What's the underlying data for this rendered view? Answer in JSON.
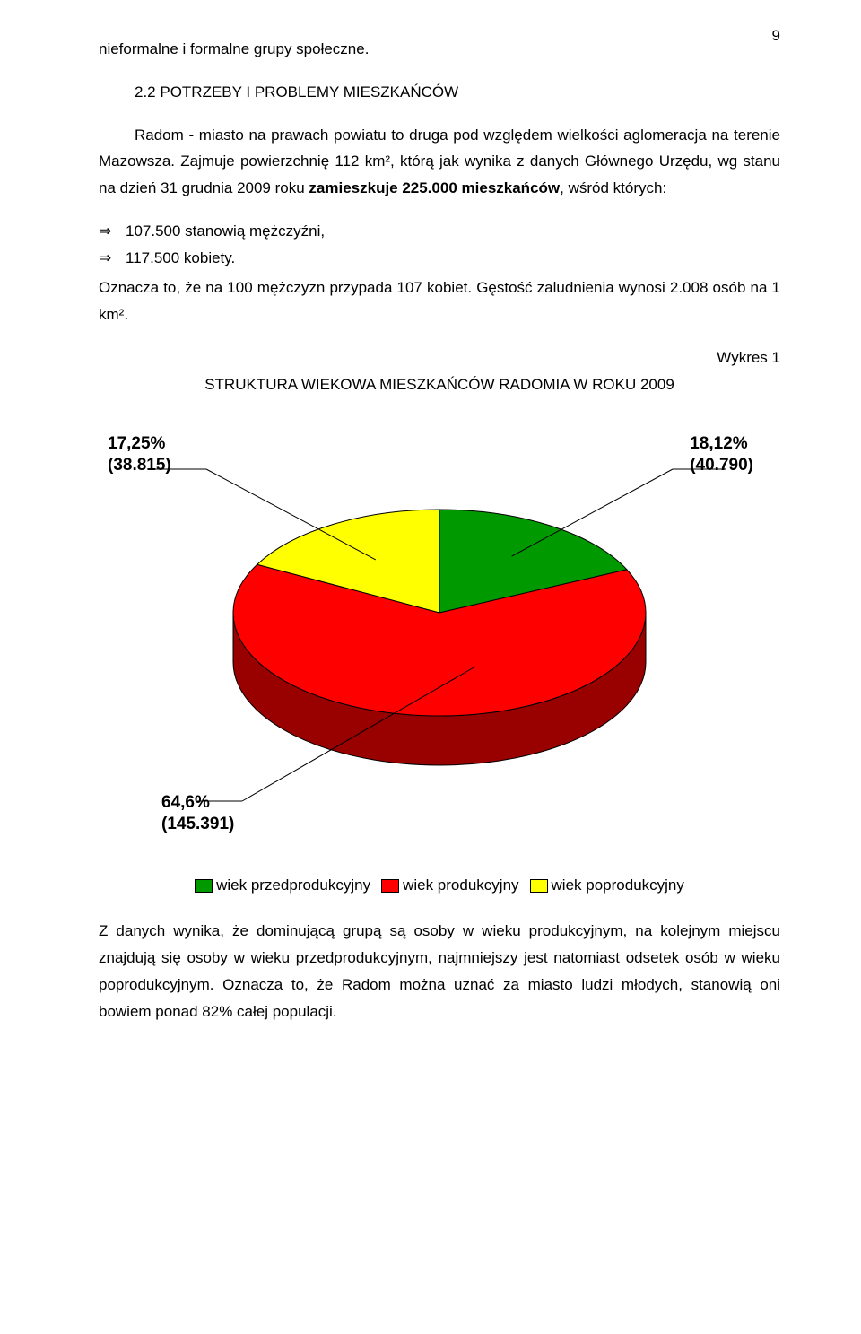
{
  "page_number": "9",
  "p1": "nieformalne i formalne grupy społeczne.",
  "heading": "2.2 POTRZEBY I PROBLEMY MIESZKAŃCÓW",
  "p2a": "Radom - miasto na prawach powiatu to druga pod względem wielkości aglomeracja na terenie Mazowsza. Zajmuje powierzchnię 112 km², którą jak wynika   z danych Głównego Urzędu, wg stanu na dzień 31 grudnia 2009 roku ",
  "p2b_bold": "zamieszkuje 225.000 mieszkańców",
  "p2c": ", wśród których:",
  "b1": "107.500 stanowią mężczyźni,",
  "b2": "117.500 kobiety.",
  "p3": "Oznacza to, że na 100 mężczyzn przypada 107 kobiet. Gęstość zaludnienia wynosi 2.008 osób na 1 km².",
  "chart_caption_right": "Wykres 1",
  "chart_title": "STRUKTURA WIEKOWA MIESZKAŃCÓW RADOMIA W ROKU 2009",
  "chart": {
    "type": "pie-3d",
    "slices": [
      {
        "key": "przedprodukcyjny",
        "label": "wiek przedprodukcyjny",
        "pct": 18.12,
        "count": "40.790",
        "color": "#009900",
        "side_color": "#006600"
      },
      {
        "key": "produkcyjny",
        "label": "wiek produkcyjny",
        "pct": 64.6,
        "count": "145.391",
        "color": "#ff0000",
        "side_color": "#990000"
      },
      {
        "key": "poprodukcyjny",
        "label": "wiek poprodukcyjny",
        "pct": 17.25,
        "count": "38.815",
        "color": "#ffff00",
        "side_color": "#808000"
      }
    ],
    "outline": "#000000",
    "background": "#ffffff",
    "callouts": {
      "left": {
        "line1": "17,25%",
        "line2": "(38.815)"
      },
      "right": {
        "line1": "18,12%",
        "line2": "(40.790)"
      },
      "bottom": {
        "line1": "64,6%",
        "line2": "(145.391)"
      }
    }
  },
  "p4": "Z danych wynika, że dominującą grupą są osoby w wieku produkcyjnym, na kolejnym miejscu znajdują się osoby w wieku przedprodukcyjnym, najmniejszy jest natomiast odsetek osób w wieku poprodukcyjnym. Oznacza to, że Radom można uznać za miasto ludzi młodych, stanowią oni bowiem ponad 82% całej populacji."
}
